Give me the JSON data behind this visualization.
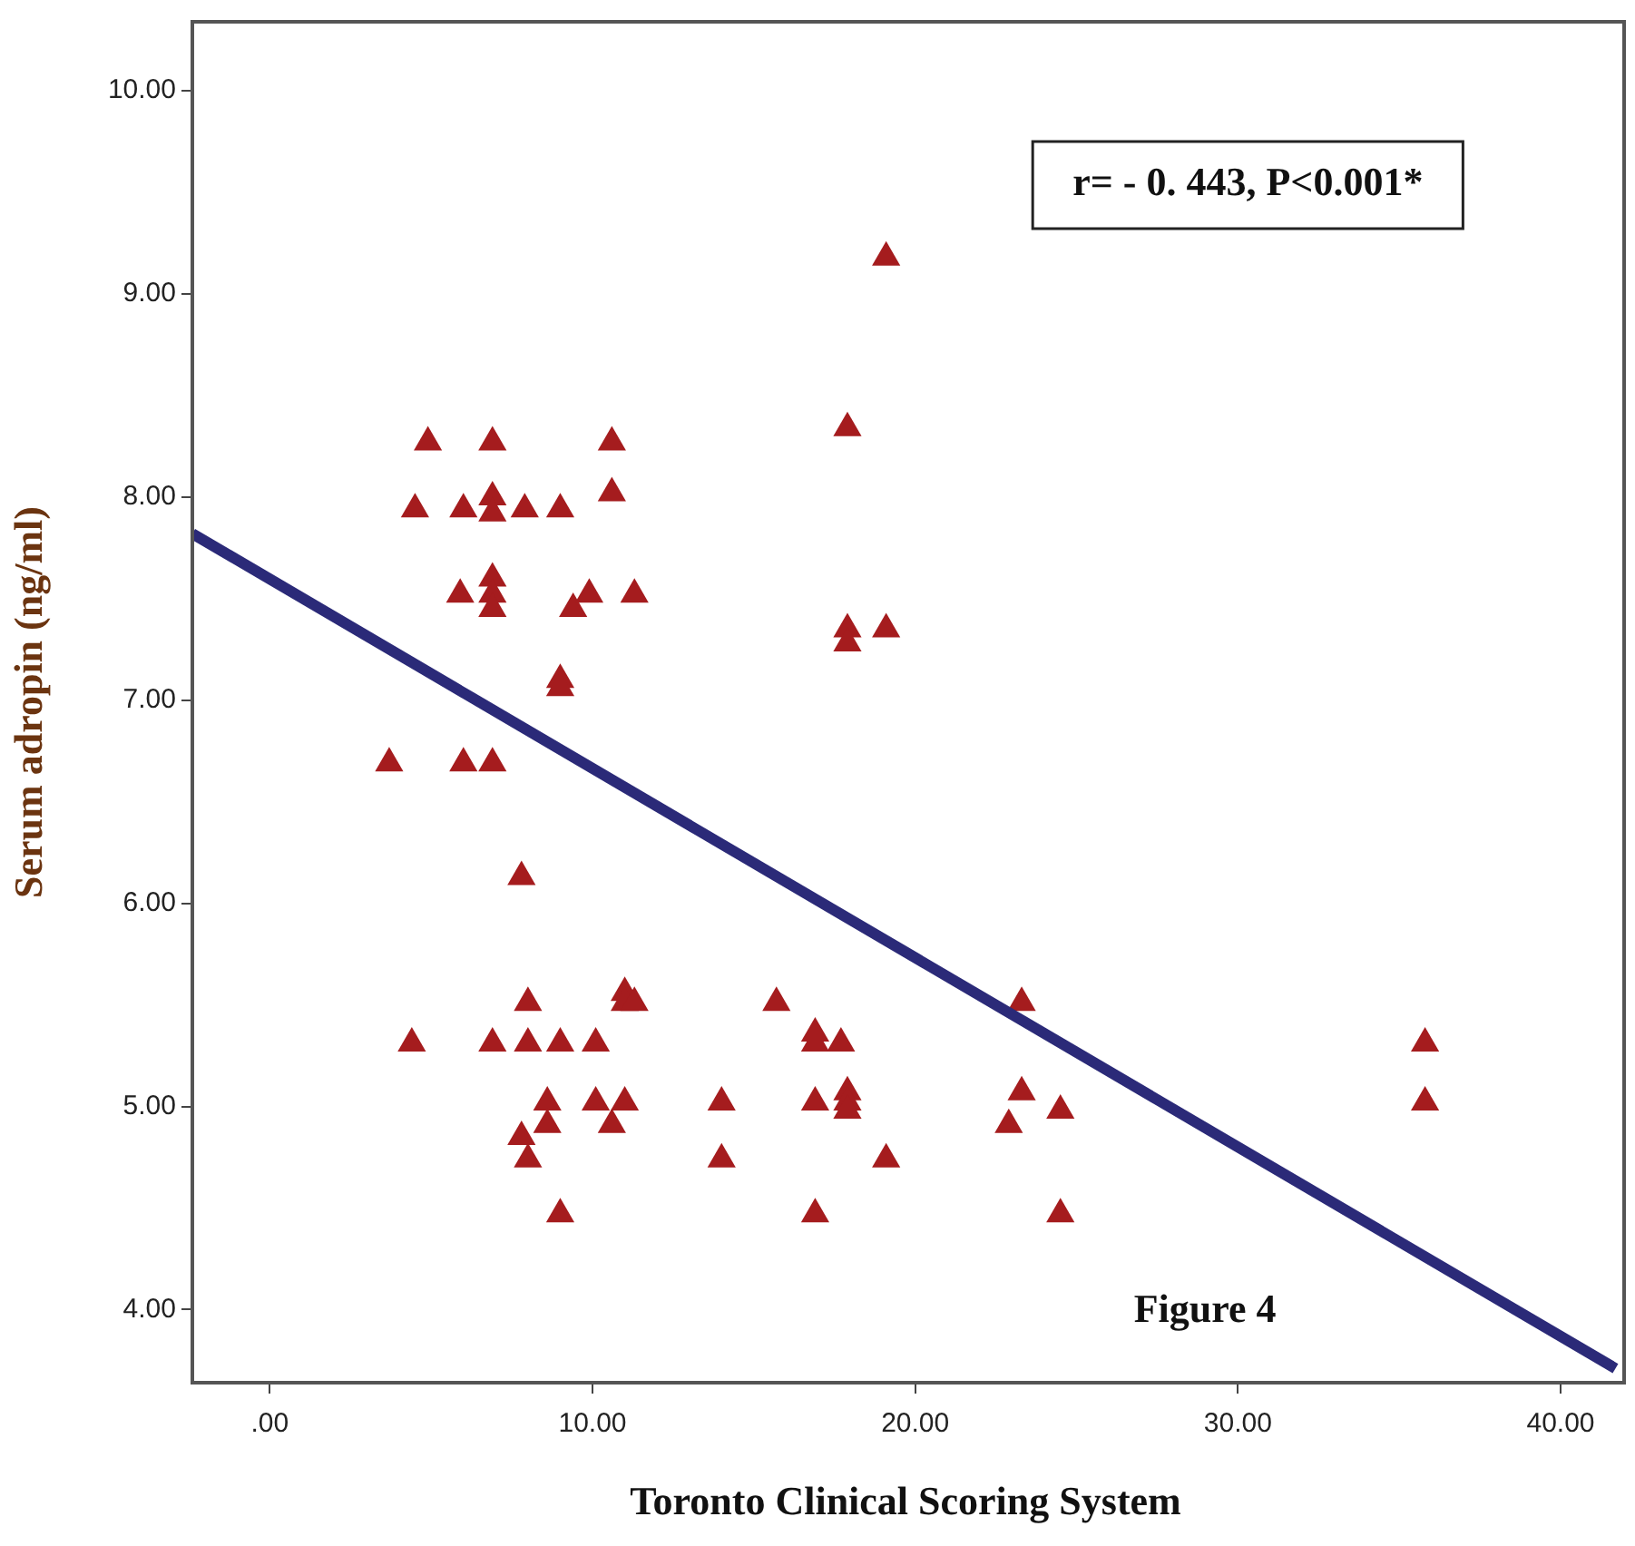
{
  "chart_data": {
    "type": "scatter",
    "xlabel": "Toronto Clinical Scoring System",
    "ylabel": "Serum adropin (ng/ml)",
    "annotations": [
      "r= - 0. 443, P<0.001*",
      "Figure 4"
    ],
    "series": [
      {
        "color": "#a51c1e",
        "marker": "triangle",
        "x": [
          3.7,
          4.4,
          4.5,
          4.9,
          5.9,
          6.0,
          6.0,
          6.9,
          6.9,
          6.9,
          6.9,
          6.9,
          6.9,
          6.9,
          6.9,
          7.9,
          7.8,
          8.0,
          8.0,
          7.8,
          8.0,
          8.6,
          8.6,
          9.0,
          9.0,
          9.0,
          9.0,
          9.0,
          9.4,
          9.9,
          10.1,
          10.1,
          10.6,
          10.6,
          10.6,
          11.0,
          11.0,
          11.3,
          11.0,
          11.3,
          14.0,
          14.0,
          15.7,
          16.9,
          16.9,
          16.9,
          16.9,
          17.7,
          17.9,
          17.9,
          17.9,
          17.9,
          17.9,
          17.9,
          19.1,
          19.1,
          19.1,
          23.3,
          23.3,
          22.9,
          24.5,
          24.5,
          35.8,
          35.8
        ],
        "values": [
          6.69,
          5.31,
          7.94,
          8.27,
          7.52,
          7.94,
          6.69,
          8.27,
          8.0,
          7.92,
          7.6,
          7.52,
          7.45,
          6.69,
          5.31,
          7.94,
          6.13,
          5.51,
          5.31,
          4.85,
          4.74,
          5.02,
          4.91,
          5.31,
          4.47,
          7.94,
          7.1,
          7.06,
          7.45,
          7.52,
          5.31,
          5.02,
          4.91,
          8.27,
          8.02,
          5.56,
          5.51,
          5.51,
          5.02,
          7.52,
          5.02,
          4.74,
          5.51,
          5.31,
          5.36,
          5.02,
          4.47,
          5.31,
          5.07,
          5.02,
          4.98,
          8.34,
          7.35,
          7.28,
          7.35,
          9.18,
          4.74,
          5.51,
          5.07,
          4.91,
          4.98,
          4.47,
          5.31,
          5.02
        ]
      },
      {
        "type": "line",
        "color": "#2b2a78",
        "marker": "none",
        "x": [
          -2.4,
          41.7
        ],
        "values": [
          7.82,
          3.71
        ]
      }
    ],
    "xlim": [
      -2.4,
      41.8
    ],
    "ylim": [
      3.64,
      10.34
    ],
    "xticks": [
      {
        "value": 0,
        "label": ".00"
      },
      {
        "value": 10,
        "label": "10.00"
      },
      {
        "value": 20,
        "label": "20.00"
      },
      {
        "value": 30,
        "label": "30.00"
      },
      {
        "value": 40,
        "label": "40.00"
      }
    ],
    "yticks": [
      {
        "value": 4,
        "label": "4.00"
      },
      {
        "value": 5,
        "label": "5.00"
      },
      {
        "value": 6,
        "label": "6.00"
      },
      {
        "value": 7,
        "label": "7.00"
      },
      {
        "value": 8,
        "label": "8.00"
      },
      {
        "value": 9,
        "label": "9.00"
      },
      {
        "value": 10,
        "label": "10.00"
      }
    ],
    "grid": false,
    "legend": false
  }
}
